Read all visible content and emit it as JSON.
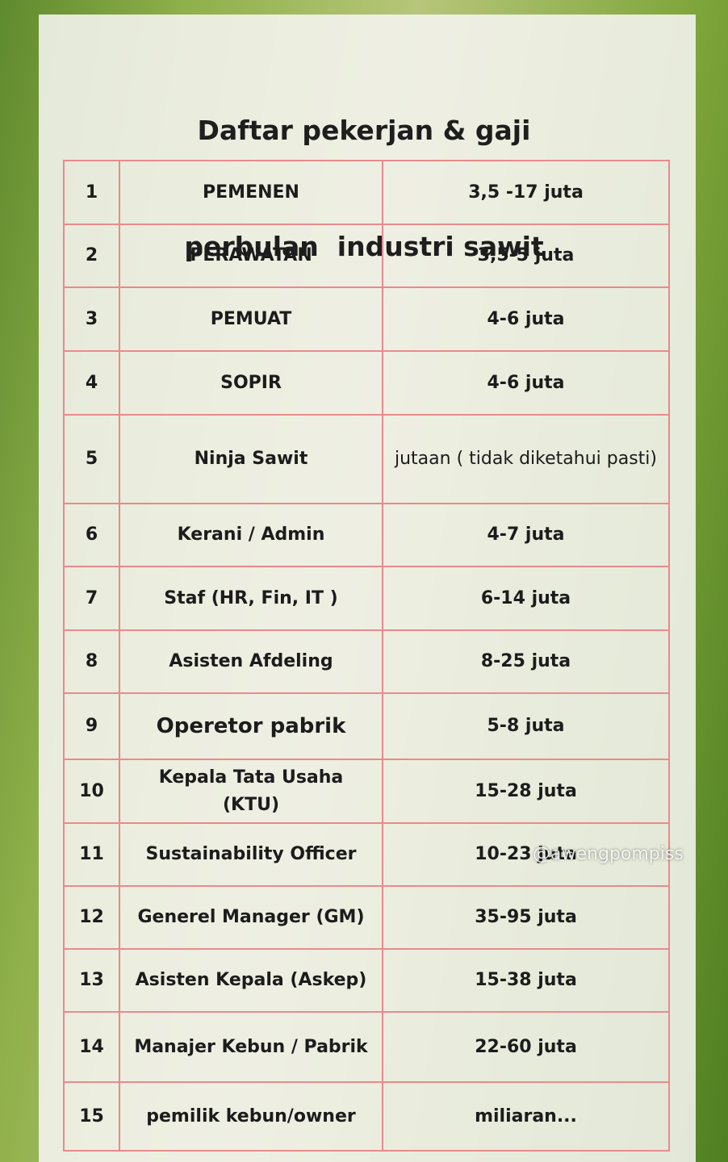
{
  "header": {
    "title_lines": [
      "Daftar pekerjan & gaji",
      "perbulan  industri sawit"
    ]
  },
  "table": {
    "rows": [
      [
        "1",
        "PEMENEN",
        "3,5 -17 juta"
      ],
      [
        "2",
        "PERAWATAN",
        "3,5-5 juta"
      ],
      [
        "3",
        "PEMUAT",
        "4-6 juta"
      ],
      [
        "4",
        "SOPIR",
        "4-6 juta"
      ],
      [
        "5",
        "Ninja Sawit",
        "jutaan ( tidak diketahui pasti)"
      ],
      [
        "6",
        "Kerani / Admin",
        "4-7 juta"
      ],
      [
        "7",
        "Staf (HR, Fin, IT )",
        "6-14 juta"
      ],
      [
        "8",
        "Asisten Afdeling",
        "8-25 juta"
      ],
      [
        "9",
        "Operetor pabrik",
        "5-8 juta"
      ],
      [
        "10",
        "Kepala Tata Usaha (KTU)",
        "15-28 juta"
      ],
      [
        "11",
        "Sustainability Officer",
        "10-23 juta"
      ],
      [
        "12",
        "Generel Manager (GM)",
        "35-95 juta"
      ],
      [
        "13",
        "Asisten Kepala (Askep)",
        "15-38 juta"
      ],
      [
        "14",
        "Manajer Kebun / Pabrik",
        "22-60 juta"
      ],
      [
        "15",
        "pemilik kebun/owner",
        "miliaran..."
      ]
    ]
  },
  "watermark": "@awengpompiss"
}
